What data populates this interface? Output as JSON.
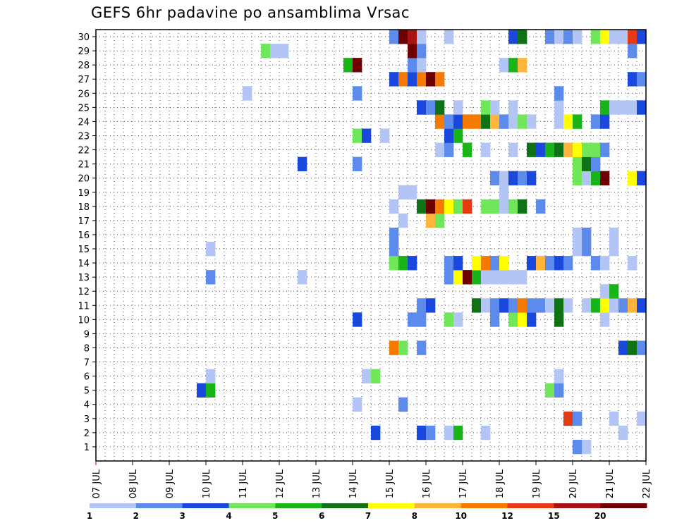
{
  "title": "GEFS 6hr padavine po ansamblima Vrsac",
  "chart_data": {
    "type": "heatmap",
    "title": "GEFS 6hr padavine po ansamblima Vrsac",
    "xlabel": "",
    "ylabel": "",
    "x_ticks": [
      "07 JUL",
      "08 JUL",
      "09 JUL",
      "10 JUL",
      "11 JUL",
      "12 JUL",
      "13 JUL",
      "14 JUL",
      "15 JUL",
      "16 JUL",
      "17 JUL",
      "18 JUL",
      "19 JUL",
      "20 JUL",
      "21 JUL",
      "22 JUL"
    ],
    "y_ticks": [
      1,
      2,
      3,
      4,
      5,
      6,
      7,
      8,
      9,
      10,
      11,
      12,
      13,
      14,
      15,
      16,
      17,
      18,
      19,
      20,
      21,
      22,
      23,
      24,
      25,
      26,
      27,
      28,
      29,
      30
    ],
    "xlim": [
      "07 JUL",
      "22 JUL"
    ],
    "ylim": [
      0,
      30
    ],
    "grid": true,
    "time_step_hours": 6,
    "colorbar": {
      "levels": [
        1,
        2,
        3,
        4,
        5,
        6,
        7,
        8,
        10,
        12,
        15,
        20
      ],
      "colors": [
        "#b3c5f5",
        "#5d8bec",
        "#1a48dc",
        "#70e65a",
        "#18b418",
        "#0f7214",
        "#ffff00",
        "#ffb43c",
        "#f57a00",
        "#e63a14",
        "#a81414",
        "#6e0000"
      ]
    },
    "rows": {
      "30": [
        [
          "15 JUL 00Z",
          2
        ],
        [
          "15 JUL 06Z",
          20
        ],
        [
          "15 JUL 12Z",
          15
        ],
        [
          "15 JUL 18Z",
          1
        ],
        [
          "16 JUL 12Z",
          1
        ],
        [
          "18 JUL 06Z",
          3
        ],
        [
          "18 JUL 12Z",
          6
        ],
        [
          "19 JUL 06Z",
          2
        ],
        [
          "19 JUL 12Z",
          1
        ],
        [
          "19 JUL 18Z",
          2
        ],
        [
          "20 JUL 00Z",
          1
        ],
        [
          "20 JUL 12Z",
          4
        ],
        [
          "20 JUL 18Z",
          7
        ],
        [
          "21 JUL 00Z",
          1
        ],
        [
          "21 JUL 06Z",
          1
        ],
        [
          "21 JUL 12Z",
          12
        ],
        [
          "21 JUL 18Z",
          3
        ]
      ],
      "29": [
        [
          "11 JUL 12Z",
          4
        ],
        [
          "11 JUL 18Z",
          1
        ],
        [
          "12 JUL 00Z",
          1
        ],
        [
          "15 JUL 12Z",
          20
        ],
        [
          "15 JUL 18Z",
          2
        ],
        [
          "21 JUL 12Z",
          2
        ]
      ],
      "28": [
        [
          "13 JUL 18Z",
          5
        ],
        [
          "14 JUL 00Z",
          20
        ],
        [
          "15 JUL 12Z",
          2
        ],
        [
          "15 JUL 18Z",
          1
        ],
        [
          "18 JUL 00Z",
          1
        ],
        [
          "18 JUL 06Z",
          5
        ],
        [
          "18 JUL 12Z",
          8
        ]
      ],
      "27": [
        [
          "15 JUL 00Z",
          3
        ],
        [
          "15 JUL 06Z",
          10
        ],
        [
          "15 JUL 12Z",
          3
        ],
        [
          "15 JUL 18Z",
          10
        ],
        [
          "16 JUL 00Z",
          20
        ],
        [
          "16 JUL 06Z",
          10
        ],
        [
          "21 JUL 12Z",
          3
        ],
        [
          "21 JUL 18Z",
          2
        ]
      ],
      "26": [
        [
          "11 JUL 00Z",
          1
        ],
        [
          "14 JUL 00Z",
          2
        ],
        [
          "19 JUL 12Z",
          2
        ]
      ],
      "25": [
        [
          "15 JUL 18Z",
          3
        ],
        [
          "16 JUL 00Z",
          2
        ],
        [
          "16 JUL 06Z",
          6
        ],
        [
          "16 JUL 18Z",
          1
        ],
        [
          "17 JUL 12Z",
          4
        ],
        [
          "17 JUL 18Z",
          1
        ],
        [
          "18 JUL 06Z",
          1
        ],
        [
          "19 JUL 12Z",
          1
        ],
        [
          "20 JUL 18Z",
          5
        ],
        [
          "21 JUL 00Z",
          1
        ],
        [
          "21 JUL 06Z",
          1
        ],
        [
          "21 JUL 12Z",
          1
        ],
        [
          "21 JUL 18Z",
          3
        ]
      ],
      "24": [
        [
          "16 JUL 06Z",
          10
        ],
        [
          "16 JUL 12Z",
          2
        ],
        [
          "16 JUL 18Z",
          3
        ],
        [
          "17 JUL 00Z",
          10
        ],
        [
          "17 JUL 06Z",
          10
        ],
        [
          "17 JUL 12Z",
          6
        ],
        [
          "17 JUL 18Z",
          8
        ],
        [
          "18 JUL 00Z",
          2
        ],
        [
          "18 JUL 06Z",
          1
        ],
        [
          "18 JUL 12Z",
          4
        ],
        [
          "18 JUL 18Z",
          1
        ],
        [
          "19 JUL 12Z",
          1
        ],
        [
          "19 JUL 18Z",
          7
        ],
        [
          "20 JUL 00Z",
          5
        ],
        [
          "20 JUL 12Z",
          2
        ],
        [
          "20 JUL 18Z",
          3
        ]
      ],
      "23": [
        [
          "14 JUL 00Z",
          4
        ],
        [
          "14 JUL 06Z",
          3
        ],
        [
          "14 JUL 18Z",
          1
        ],
        [
          "16 JUL 12Z",
          3
        ],
        [
          "16 JUL 18Z",
          5
        ]
      ],
      "22": [
        [
          "16 JUL 06Z",
          1
        ],
        [
          "16 JUL 12Z",
          2
        ],
        [
          "17 JUL 00Z",
          5
        ],
        [
          "17 JUL 12Z",
          1
        ],
        [
          "18 JUL 06Z",
          1
        ],
        [
          "18 JUL 18Z",
          6
        ],
        [
          "19 JUL 00Z",
          3
        ],
        [
          "19 JUL 06Z",
          5
        ],
        [
          "19 JUL 12Z",
          6
        ],
        [
          "19 JUL 18Z",
          8
        ],
        [
          "20 JUL 00Z",
          7
        ],
        [
          "20 JUL 06Z",
          4
        ],
        [
          "20 JUL 12Z",
          4
        ],
        [
          "20 JUL 18Z",
          2
        ]
      ],
      "21": [
        [
          "12 JUL 12Z",
          3
        ],
        [
          "14 JUL 00Z",
          2
        ],
        [
          "20 JUL 00Z",
          4
        ],
        [
          "20 JUL 06Z",
          6
        ],
        [
          "20 JUL 12Z",
          2
        ]
      ],
      "20": [
        [
          "17 JUL 18Z",
          2
        ],
        [
          "18 JUL 00Z",
          1
        ],
        [
          "18 JUL 06Z",
          3
        ],
        [
          "18 JUL 12Z",
          2
        ],
        [
          "18 JUL 18Z",
          3
        ],
        [
          "20 JUL 00Z",
          4
        ],
        [
          "20 JUL 06Z",
          1
        ],
        [
          "20 JUL 12Z",
          5
        ],
        [
          "20 JUL 18Z",
          20
        ],
        [
          "21 JUL 12Z",
          7
        ],
        [
          "21 JUL 18Z",
          3
        ]
      ],
      "19": [
        [
          "15 JUL 06Z",
          1
        ],
        [
          "15 JUL 12Z",
          1
        ],
        [
          "18 JUL 00Z",
          1
        ]
      ],
      "18": [
        [
          "15 JUL 00Z",
          1
        ],
        [
          "15 JUL 18Z",
          6
        ],
        [
          "16 JUL 00Z",
          20
        ],
        [
          "16 JUL 06Z",
          10
        ],
        [
          "16 JUL 12Z",
          7
        ],
        [
          "16 JUL 18Z",
          4
        ],
        [
          "17 JUL 00Z",
          12
        ],
        [
          "17 JUL 12Z",
          4
        ],
        [
          "17 JUL 18Z",
          4
        ],
        [
          "18 JUL 00Z",
          1
        ],
        [
          "18 JUL 06Z",
          4
        ],
        [
          "18 JUL 12Z",
          6
        ],
        [
          "19 JUL 00Z",
          2
        ]
      ],
      "17": [
        [
          "15 JUL 06Z",
          1
        ],
        [
          "16 JUL 00Z",
          8
        ],
        [
          "16 JUL 06Z",
          4
        ]
      ],
      "16": [
        [
          "15 JUL 00Z",
          2
        ],
        [
          "20 JUL 00Z",
          1
        ],
        [
          "20 JUL 06Z",
          2
        ],
        [
          "21 JUL 00Z",
          1
        ]
      ],
      "15": [
        [
          "10 JUL 00Z",
          1
        ],
        [
          "15 JUL 00Z",
          2
        ],
        [
          "20 JUL 00Z",
          1
        ],
        [
          "20 JUL 06Z",
          2
        ],
        [
          "21 JUL 00Z",
          1
        ]
      ],
      "14": [
        [
          "15 JUL 00Z",
          4
        ],
        [
          "15 JUL 06Z",
          5
        ],
        [
          "15 JUL 12Z",
          3
        ],
        [
          "16 JUL 12Z",
          2
        ],
        [
          "16 JUL 18Z",
          3
        ],
        [
          "17 JUL 06Z",
          7
        ],
        [
          "17 JUL 12Z",
          10
        ],
        [
          "17 JUL 18Z",
          2
        ],
        [
          "18 JUL 00Z",
          7
        ],
        [
          "18 JUL 18Z",
          3
        ],
        [
          "19 JUL 00Z",
          8
        ],
        [
          "19 JUL 06Z",
          2
        ],
        [
          "19 JUL 12Z",
          3
        ],
        [
          "19 JUL 18Z",
          2
        ],
        [
          "20 JUL 12Z",
          2
        ],
        [
          "20 JUL 18Z",
          1
        ],
        [
          "21 JUL 12Z",
          1
        ]
      ],
      "13": [
        [
          "10 JUL 00Z",
          2
        ],
        [
          "12 JUL 12Z",
          1
        ],
        [
          "16 JUL 12Z",
          2
        ],
        [
          "16 JUL 18Z",
          7
        ],
        [
          "17 JUL 00Z",
          20
        ],
        [
          "17 JUL 06Z",
          5
        ],
        [
          "17 JUL 12Z",
          1
        ],
        [
          "17 JUL 18Z",
          1
        ],
        [
          "18 JUL 00Z",
          1
        ],
        [
          "18 JUL 06Z",
          1
        ],
        [
          "18 JUL 12Z",
          1
        ],
        [
          "22 JUL 00Z",
          4
        ]
      ],
      "12": [
        [
          "20 JUL 18Z",
          1
        ],
        [
          "21 JUL 00Z",
          5
        ]
      ],
      "11": [
        [
          "15 JUL 18Z",
          2
        ],
        [
          "16 JUL 00Z",
          3
        ],
        [
          "17 JUL 06Z",
          6
        ],
        [
          "17 JUL 12Z",
          1
        ],
        [
          "17 JUL 18Z",
          2
        ],
        [
          "18 JUL 00Z",
          3
        ],
        [
          "18 JUL 06Z",
          2
        ],
        [
          "18 JUL 12Z",
          10
        ],
        [
          "18 JUL 18Z",
          2
        ],
        [
          "19 JUL 00Z",
          2
        ],
        [
          "19 JUL 06Z",
          1
        ],
        [
          "19 JUL 12Z",
          6
        ],
        [
          "19 JUL 18Z",
          1
        ],
        [
          "20 JUL 06Z",
          1
        ],
        [
          "20 JUL 12Z",
          5
        ],
        [
          "20 JUL 18Z",
          7
        ],
        [
          "21 JUL 00Z",
          1
        ],
        [
          "21 JUL 06Z",
          2
        ],
        [
          "21 JUL 12Z",
          8
        ],
        [
          "21 JUL 18Z",
          3
        ]
      ],
      "10": [
        [
          "14 JUL 00Z",
          3
        ],
        [
          "15 JUL 12Z",
          2
        ],
        [
          "15 JUL 18Z",
          2
        ],
        [
          "16 JUL 12Z",
          4
        ],
        [
          "16 JUL 18Z",
          1
        ],
        [
          "17 JUL 18Z",
          2
        ],
        [
          "18 JUL 06Z",
          4
        ],
        [
          "18 JUL 12Z",
          7
        ],
        [
          "18 JUL 18Z",
          3
        ],
        [
          "19 JUL 12Z",
          6
        ],
        [
          "20 JUL 18Z",
          1
        ]
      ],
      "9": [],
      "8": [
        [
          "15 JUL 00Z",
          10
        ],
        [
          "15 JUL 06Z",
          4
        ],
        [
          "15 JUL 18Z",
          2
        ],
        [
          "21 JUL 06Z",
          3
        ],
        [
          "21 JUL 12Z",
          6
        ],
        [
          "21 JUL 18Z",
          2
        ]
      ],
      "7": [],
      "6": [
        [
          "10 JUL 00Z",
          1
        ],
        [
          "14 JUL 06Z",
          1
        ],
        [
          "14 JUL 12Z",
          4
        ],
        [
          "19 JUL 12Z",
          1
        ]
      ],
      "5": [
        [
          "09 JUL 18Z",
          3
        ],
        [
          "10 JUL 00Z",
          5
        ],
        [
          "19 JUL 06Z",
          4
        ],
        [
          "19 JUL 12Z",
          2
        ],
        [
          "22 JUL 00Z",
          3
        ]
      ],
      "4": [
        [
          "14 JUL 00Z",
          1
        ],
        [
          "15 JUL 06Z",
          2
        ]
      ],
      "3": [
        [
          "19 JUL 18Z",
          12
        ],
        [
          "20 JUL 00Z",
          2
        ],
        [
          "21 JUL 00Z",
          1
        ],
        [
          "21 JUL 18Z",
          1
        ],
        [
          "22 JUL 00Z",
          3
        ]
      ],
      "2": [
        [
          "14 JUL 12Z",
          3
        ],
        [
          "15 JUL 18Z",
          3
        ],
        [
          "16 JUL 00Z",
          2
        ],
        [
          "16 JUL 12Z",
          1
        ],
        [
          "16 JUL 18Z",
          5
        ],
        [
          "17 JUL 12Z",
          1
        ],
        [
          "21 JUL 06Z",
          1
        ]
      ],
      "1": [
        [
          "20 JUL 00Z",
          2
        ],
        [
          "20 JUL 06Z",
          1
        ]
      ]
    }
  }
}
